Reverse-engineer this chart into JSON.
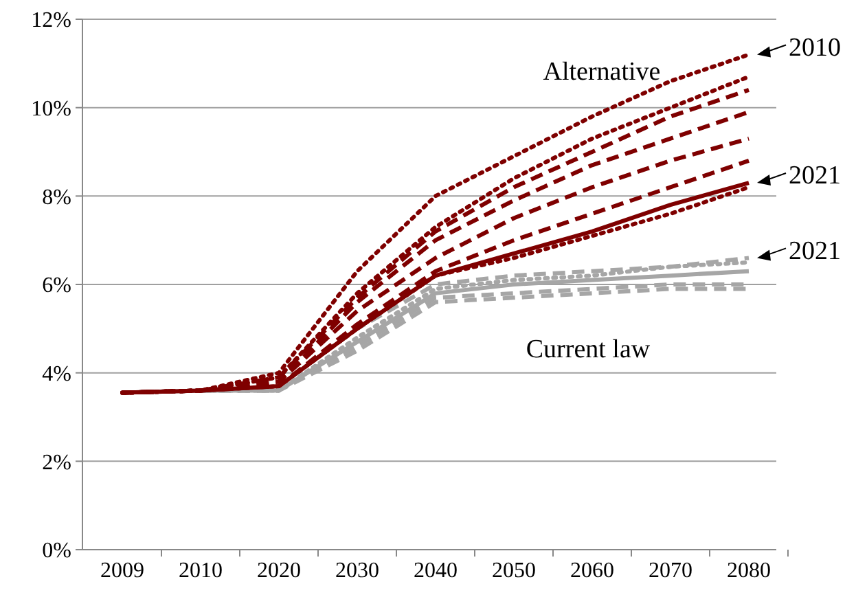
{
  "chart_data": {
    "type": "line",
    "categories": [
      "2009",
      "2010",
      "2020",
      "2030",
      "2040",
      "2050",
      "2060",
      "2070",
      "2080"
    ],
    "ylim": [
      0,
      12
    ],
    "yticks": [
      {
        "value": 0,
        "label": "0%"
      },
      {
        "value": 2,
        "label": "2%"
      },
      {
        "value": 4,
        "label": "4%"
      },
      {
        "value": 6,
        "label": "6%"
      },
      {
        "value": 8,
        "label": "8%"
      },
      {
        "value": 10,
        "label": "10%"
      },
      {
        "value": 12,
        "label": "12%"
      }
    ],
    "grid": "y",
    "marker": "none",
    "series": [
      {
        "color": "#a6a6a6",
        "line_style": "dashed",
        "values": [
          3.55,
          3.6,
          3.7,
          5.0,
          6.0,
          6.2,
          6.3,
          6.4,
          6.6
        ]
      },
      {
        "color": "#a6a6a6",
        "line_style": "dotted",
        "values": [
          3.55,
          3.6,
          3.6,
          4.8,
          5.9,
          6.1,
          6.2,
          6.4,
          6.5
        ]
      },
      {
        "color": "#a6a6a6",
        "line_style": "solid",
        "values": [
          3.55,
          3.6,
          3.6,
          4.7,
          5.8,
          6.0,
          6.1,
          6.2,
          6.3
        ]
      },
      {
        "color": "#a6a6a6",
        "line_style": "dashed",
        "values": [
          3.55,
          3.6,
          3.6,
          4.6,
          5.7,
          5.8,
          5.9,
          6.0,
          6.0
        ]
      },
      {
        "color": "#a6a6a6",
        "line_style": "dashed",
        "values": [
          3.55,
          3.6,
          3.6,
          4.5,
          5.6,
          5.7,
          5.8,
          5.9,
          5.9
        ]
      },
      {
        "color": "#7f0000",
        "line_style": "dotted",
        "values": [
          3.55,
          3.6,
          4.0,
          6.3,
          8.0,
          8.9,
          9.8,
          10.6,
          11.2
        ]
      },
      {
        "color": "#7f0000",
        "line_style": "dotted",
        "values": [
          3.55,
          3.6,
          3.9,
          5.8,
          7.3,
          8.4,
          9.3,
          10.0,
          10.7
        ]
      },
      {
        "color": "#7f0000",
        "line_style": "dashed",
        "values": [
          3.55,
          3.6,
          3.9,
          5.7,
          7.2,
          8.2,
          9.0,
          9.8,
          10.4
        ]
      },
      {
        "color": "#7f0000",
        "line_style": "dashed",
        "values": [
          3.55,
          3.6,
          3.8,
          5.6,
          7.0,
          7.9,
          8.7,
          9.3,
          9.9
        ]
      },
      {
        "color": "#7f0000",
        "line_style": "dashed",
        "values": [
          3.55,
          3.6,
          3.8,
          5.4,
          6.6,
          7.5,
          8.2,
          8.8,
          9.3
        ]
      },
      {
        "color": "#7f0000",
        "line_style": "dashed",
        "values": [
          3.55,
          3.6,
          3.7,
          5.1,
          6.3,
          7.0,
          7.6,
          8.2,
          8.8
        ]
      },
      {
        "color": "#7f0000",
        "line_style": "dotted",
        "values": [
          3.55,
          3.6,
          3.7,
          5.0,
          6.2,
          6.6,
          7.1,
          7.6,
          8.2
        ]
      },
      {
        "color": "#7f0000",
        "line_style": "solid",
        "values": [
          3.55,
          3.6,
          3.7,
          5.0,
          6.2,
          6.7,
          7.2,
          7.8,
          8.3
        ]
      }
    ],
    "annotations": [
      "Alternative",
      "Current law",
      {
        "text": "2010",
        "x": "2080",
        "y": 11.2
      },
      {
        "text": "2021",
        "x": "2080",
        "y": 8.3
      },
      {
        "text": "2021",
        "x": "2080",
        "y": 6.6
      }
    ]
  }
}
